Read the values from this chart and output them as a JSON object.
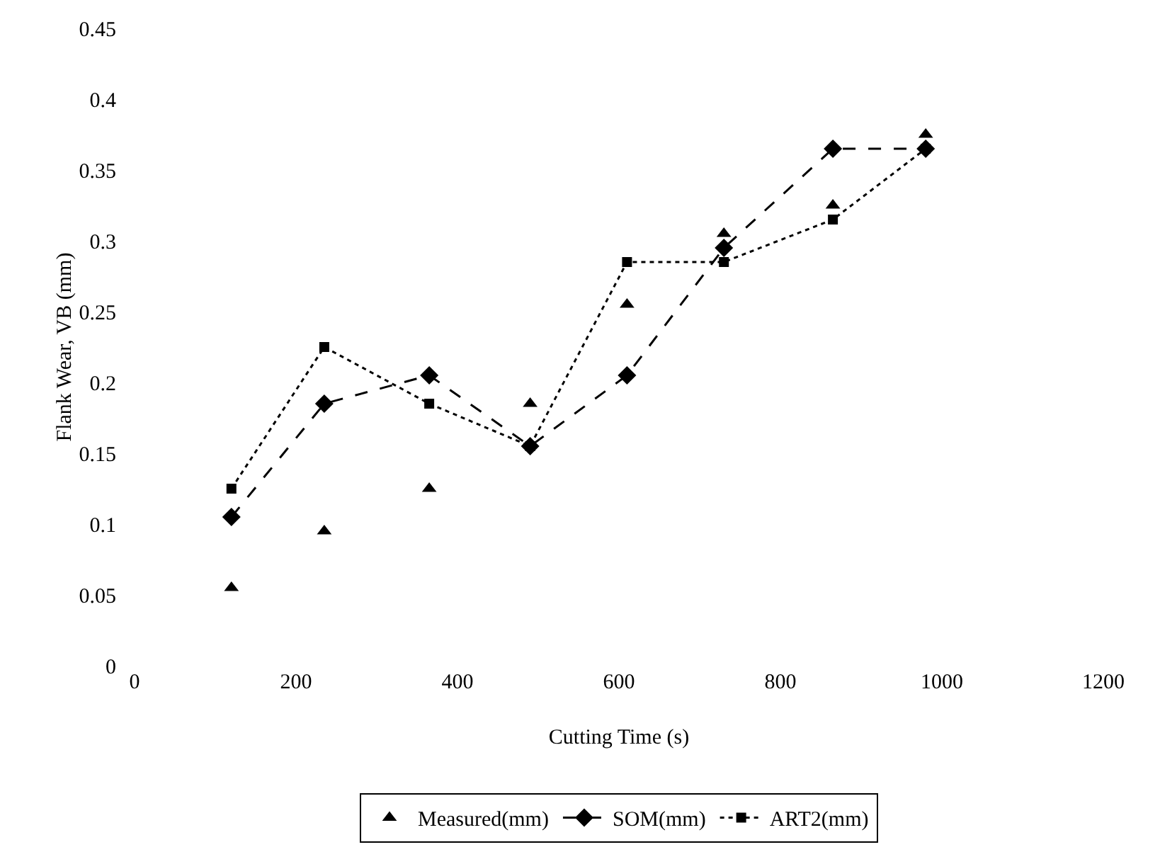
{
  "chart_data": {
    "type": "line",
    "xlabel": "Cutting Time (s)",
    "ylabel": "Flank Wear, VB (mm)",
    "x": [
      120,
      235,
      365,
      490,
      610,
      730,
      865,
      980
    ],
    "series": [
      {
        "name": "Measured(mm)",
        "color": "#000000",
        "type": "scatter",
        "marker": "triangle",
        "values": [
          0.055,
          0.095,
          0.125,
          0.185,
          0.255,
          0.305,
          0.325,
          0.375
        ]
      },
      {
        "name": "SOM(mm)",
        "color": "#000000",
        "marker": "diamond",
        "line_style": "dashed",
        "values": [
          0.105,
          0.185,
          0.205,
          0.155,
          0.205,
          0.295,
          0.365,
          0.365
        ]
      },
      {
        "name": "ART2(mm)",
        "color": "#000000",
        "marker": "square",
        "line_style": "dotted",
        "values": [
          0.125,
          0.225,
          0.185,
          0.155,
          0.285,
          0.285,
          0.315,
          0.365
        ]
      }
    ],
    "xlim": [
      0,
      1200
    ],
    "xticks": [
      0,
      200,
      400,
      600,
      800,
      1000,
      1200
    ],
    "ylim": [
      0,
      0.45
    ],
    "yticks": [
      0,
      0.05,
      0.1,
      0.15,
      0.2,
      0.25,
      0.3,
      0.35,
      0.4,
      0.45
    ],
    "grid": false,
    "legend": "bottom"
  }
}
